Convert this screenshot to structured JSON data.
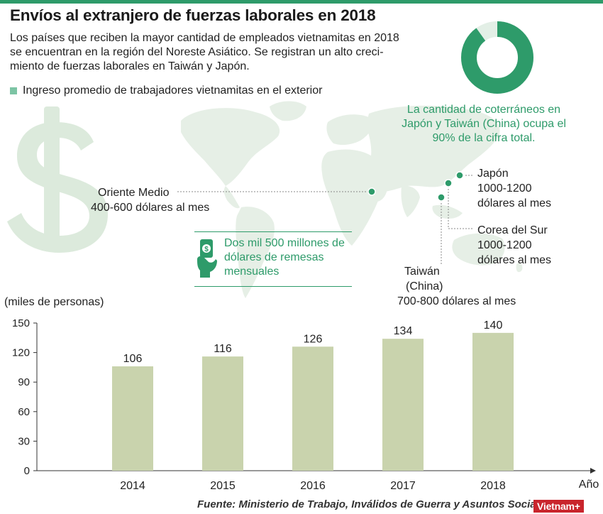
{
  "title": "Envíos al extranjero de fuerzas laborales en 2018",
  "subtitle": "Los países que reciben la mayor cantidad de empleados vietnamitas en 2018 se encuentran en la región del Noreste Asiático. Se registran un alto creci-miento de fuerzas laborales en Taiwán y Japón.",
  "subtitle_lines": [
    "Los países que reciben la mayor cantidad de empleados vietnamitas en 2018",
    "se encuentran en la región del Noreste Asiático. Se registran un alto creci-",
    "miento de fuerzas laborales en Taiwán y Japón."
  ],
  "legend_label": "Ingreso promedio de trabajadores vietnamitas en el exterior",
  "donut": {
    "value_fraction": 0.9,
    "note_lines": [
      "La cantidad de coterráneos en",
      "Japón y Taiwán (China) ocupa el",
      "90% de la cifra total."
    ]
  },
  "locations": {
    "middle_east": {
      "name": "Oriente Medio",
      "income": "400-600 dólares al mes"
    },
    "japan": {
      "name": "Japón",
      "income_lines": [
        "1000-1200",
        "dólares al mes"
      ]
    },
    "korea": {
      "name": "Corea del Sur",
      "income_lines": [
        "1000-1200",
        "dólares al mes"
      ]
    },
    "taiwan": {
      "name_lines": [
        "Taiwán",
        "(China)"
      ],
      "income": "700-800 dólares al mes"
    }
  },
  "remittance_lines": [
    "Dos mil 500 millones de",
    "dólares de remesas",
    "mensuales"
  ],
  "chart_data": {
    "type": "bar",
    "categories": [
      "2014",
      "2015",
      "2016",
      "2017",
      "2018"
    ],
    "values": [
      106,
      116,
      126,
      134,
      140
    ],
    "ylabel": "(miles de personas)",
    "xlabel": "Año",
    "ylim": [
      0,
      150
    ],
    "yticks": [
      0,
      30,
      60,
      90,
      120,
      150
    ],
    "grid": false
  },
  "colors": {
    "accent": "#2e9b6a",
    "bar": "#c9d3ad",
    "map": "#e6efe6",
    "dollar": "#dceadc",
    "logo": "#c9252c"
  },
  "source": "Fuente: Ministerio de Trabajo, Inválidos de Guerra y Asuntos Sociales",
  "logo": "Vietnam+"
}
